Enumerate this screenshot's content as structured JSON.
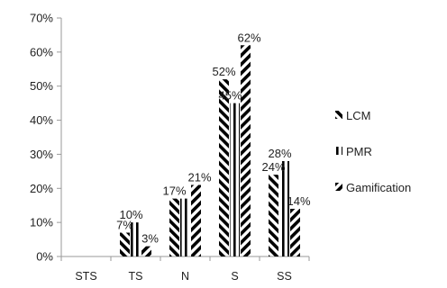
{
  "chart_data": {
    "type": "bar",
    "categories": [
      "STS",
      "TS",
      "N",
      "S",
      "SS"
    ],
    "series": [
      {
        "name": "LCM",
        "values": [
          0,
          7,
          17,
          52,
          24
        ],
        "labels": [
          "",
          "7%",
          "17%",
          "52%",
          "24%"
        ],
        "pattern": "diag-left"
      },
      {
        "name": "PMR",
        "values": [
          0,
          10,
          17,
          45,
          28
        ],
        "labels": [
          "",
          "10%",
          "",
          "45%",
          "28%"
        ],
        "pattern": "vertical"
      },
      {
        "name": "Gamification",
        "values": [
          0,
          3,
          21,
          62,
          14
        ],
        "labels": [
          "",
          "3%",
          "21%",
          "62%",
          "14%"
        ],
        "pattern": "diag-right"
      }
    ],
    "y_ticks": [
      "0%",
      "10%",
      "20%",
      "30%",
      "40%",
      "50%",
      "60%",
      "70%"
    ],
    "ylim": [
      0,
      70
    ],
    "title": "",
    "xlabel": "",
    "ylabel": "",
    "grid": false,
    "legend_position": "right",
    "colors": {
      "bar": "#000000",
      "axis": "#9a9a9a",
      "text": "#222222"
    }
  }
}
